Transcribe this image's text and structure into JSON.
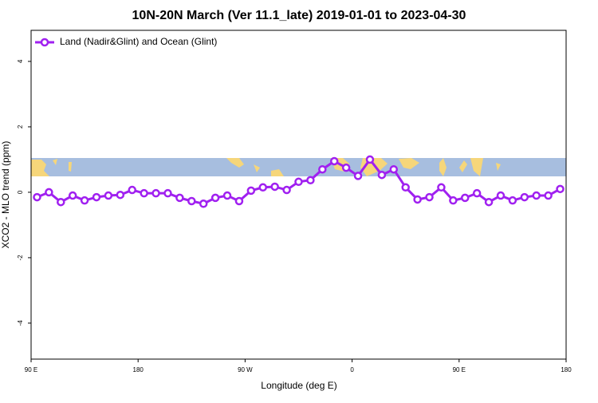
{
  "chart_data": {
    "type": "line",
    "title": "10N-20N March (Ver 11.1_late)   2019-01-01 to 2023-04-30",
    "x_label": "Longitude (deg E)",
    "y_label": "XCO2 - MLO trend (ppm)",
    "xlim": [
      90,
      540
    ],
    "ylim": [
      -5.1,
      4.95
    ],
    "xticks": [
      {
        "value": 90,
        "label": "90 E"
      },
      {
        "value": 180,
        "label": "180"
      },
      {
        "value": 270,
        "label": "90 W"
      },
      {
        "value": 360,
        "label": "0"
      },
      {
        "value": 450,
        "label": "90 E"
      },
      {
        "value": 540,
        "label": "180"
      }
    ],
    "yticks": [
      -4,
      -2,
      0,
      2,
      4
    ],
    "legend": "top-left",
    "series": [
      {
        "name": "Land (Nadir&Glint) and Ocean (Glint)",
        "color": "#a020f0",
        "x": [
          95,
          105,
          115,
          125,
          135,
          145,
          155,
          165,
          175,
          185,
          195,
          205,
          215,
          225,
          235,
          245,
          255,
          265,
          275,
          285,
          295,
          305,
          315,
          325,
          335,
          345,
          355,
          365,
          375,
          385,
          395,
          405,
          415,
          425,
          435,
          445,
          455,
          465,
          475,
          485,
          495,
          505,
          515,
          525,
          535
        ],
        "values": [
          -0.15,
          0.0,
          -0.3,
          -0.1,
          -0.25,
          -0.15,
          -0.1,
          -0.08,
          0.07,
          -0.03,
          -0.03,
          -0.03,
          -0.17,
          -0.27,
          -0.35,
          -0.17,
          -0.1,
          -0.27,
          0.05,
          0.15,
          0.17,
          0.07,
          0.32,
          0.37,
          0.7,
          0.95,
          0.75,
          0.5,
          1.0,
          0.53,
          0.7,
          0.15,
          -0.22,
          -0.15,
          0.15,
          -0.25,
          -0.17,
          -0.03,
          -0.3,
          -0.1,
          -0.25,
          -0.15,
          -0.1,
          -0.1,
          0.1
        ]
      }
    ]
  }
}
